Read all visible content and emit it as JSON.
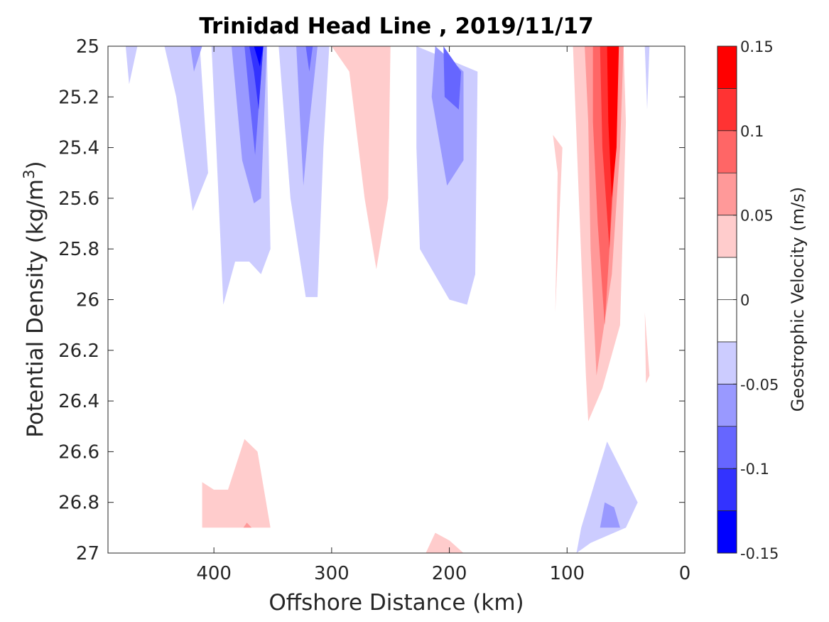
{
  "chart_data": {
    "type": "contour",
    "title": "Trinidad Head Line , 2019/11/17",
    "xlabel": "Offshore Distance (km)",
    "ylabel_main": "Potential Density (kg/m",
    "ylabel_sup": "3",
    "ylabel_tail": ")",
    "xlim": [
      490,
      0
    ],
    "ylim": [
      25,
      27
    ],
    "y_reversed": true,
    "x_reversed": true,
    "grid": false,
    "xticks": [
      400,
      300,
      200,
      100,
      0
    ],
    "xtick_labels": [
      "400",
      "300",
      "200",
      "100",
      "0"
    ],
    "yticks": [
      25,
      25.2,
      25.4,
      25.6,
      25.8,
      26,
      26.2,
      26.4,
      26.6,
      26.8,
      27
    ],
    "ytick_labels": [
      "25",
      "25.2",
      "25.4",
      "25.6",
      "25.8",
      "26",
      "26.2",
      "26.4",
      "26.6",
      "26.8",
      "27"
    ],
    "colorbar": {
      "label": "Geostrophic Velocity (m/s)",
      "range": [
        -0.15,
        0.15
      ],
      "ticks": [
        0.15,
        0.1,
        0.05,
        0,
        -0.05,
        -0.1,
        -0.15
      ],
      "tick_labels": [
        "0.15",
        "0.1",
        "0.05",
        "0",
        "-0.05",
        "-0.1",
        "-0.15"
      ],
      "bands_top_to_bottom": [
        "#ff0000",
        "#ff3333",
        "#ff6666",
        "#ff9999",
        "#ffcccc",
        "#ffffff",
        "#ffffff",
        "#ccccff",
        "#9999ff",
        "#6666ff",
        "#3333ff",
        "#0000ff"
      ]
    },
    "contour_regions": [
      {
        "level": -0.05,
        "color": "#ccccff",
        "points": [
          [
            475,
            25
          ],
          [
            465,
            25
          ],
          [
            472,
            25.15
          ]
        ]
      },
      {
        "level": -0.05,
        "color": "#ccccff",
        "points": [
          [
            442,
            25
          ],
          [
            412,
            25
          ],
          [
            405,
            25.5
          ],
          [
            418,
            25.65
          ],
          [
            432,
            25.2
          ]
        ]
      },
      {
        "level": -0.05,
        "color": "#ccccff",
        "points": [
          [
            402,
            25
          ],
          [
            355,
            25
          ],
          [
            352,
            25.8
          ],
          [
            360,
            25.9
          ],
          [
            370,
            25.85
          ],
          [
            382,
            25.85
          ],
          [
            392,
            26.02
          ],
          [
            398,
            25.4
          ]
        ]
      },
      {
        "level": -0.05,
        "color": "#ccccff",
        "points": [
          [
            345,
            25
          ],
          [
            302,
            25
          ],
          [
            307,
            25.4
          ],
          [
            312,
            25.99
          ],
          [
            322,
            25.99
          ],
          [
            335,
            25.6
          ]
        ]
      },
      {
        "level": -0.05,
        "color": "#ccccff",
        "points": [
          [
            228,
            25
          ],
          [
            176,
            25.1
          ],
          [
            178,
            25.9
          ],
          [
            185,
            26.02
          ],
          [
            200,
            26
          ],
          [
            225,
            25.8
          ],
          [
            228,
            25.4
          ]
        ]
      },
      {
        "level": -0.05,
        "color": "#ccccff",
        "points": [
          [
            34,
            25
          ],
          [
            30,
            25
          ],
          [
            32,
            25.25
          ]
        ]
      },
      {
        "level": -0.05,
        "color": "#ccccff",
        "points": [
          [
            66,
            26.56
          ],
          [
            40,
            26.8
          ],
          [
            50,
            26.9
          ],
          [
            80,
            26.96
          ],
          [
            92,
            27
          ],
          [
            88,
            26.9
          ],
          [
            75,
            26.7
          ]
        ]
      },
      {
        "level": -0.075,
        "color": "#9999ff",
        "points": [
          [
            420,
            25
          ],
          [
            410,
            25
          ],
          [
            417,
            25.1
          ]
        ]
      },
      {
        "level": -0.075,
        "color": "#9999ff",
        "points": [
          [
            385,
            25
          ],
          [
            355,
            25
          ],
          [
            360,
            25.6
          ],
          [
            366,
            25.62
          ],
          [
            376,
            25.45
          ]
        ]
      },
      {
        "level": -0.075,
        "color": "#9999ff",
        "points": [
          [
            330,
            25
          ],
          [
            312,
            25
          ],
          [
            320,
            25.35
          ],
          [
            324,
            25.55
          ]
        ]
      },
      {
        "level": -0.075,
        "color": "#9999ff",
        "points": [
          [
            212,
            25
          ],
          [
            188,
            25.1
          ],
          [
            188,
            25.45
          ],
          [
            202,
            25.55
          ],
          [
            215,
            25.2
          ]
        ]
      },
      {
        "level": -0.075,
        "color": "#9999ff",
        "points": [
          [
            60,
            26.82
          ],
          [
            55,
            26.9
          ],
          [
            72,
            26.9
          ],
          [
            68,
            26.8
          ]
        ]
      },
      {
        "level": -0.1,
        "color": "#6666ff",
        "points": [
          [
            374,
            25
          ],
          [
            358,
            25
          ],
          [
            365,
            25.43
          ],
          [
            370,
            25.2
          ]
        ]
      },
      {
        "level": -0.1,
        "color": "#6666ff",
        "points": [
          [
            322,
            25
          ],
          [
            316,
            25
          ],
          [
            319,
            25.1
          ]
        ]
      },
      {
        "level": -0.1,
        "color": "#6666ff",
        "points": [
          [
            205,
            25
          ],
          [
            190,
            25.1
          ],
          [
            192,
            25.25
          ],
          [
            204,
            25.2
          ]
        ]
      },
      {
        "level": -0.125,
        "color": "#3333ff",
        "points": [
          [
            370,
            25
          ],
          [
            358,
            25
          ],
          [
            362,
            25.25
          ],
          [
            366,
            25.1
          ]
        ]
      },
      {
        "level": -0.15,
        "color": "#0000ff",
        "points": [
          [
            366,
            25
          ],
          [
            358,
            25
          ],
          [
            361,
            25.08
          ]
        ]
      },
      {
        "level": 0.025,
        "color": "#ffcccc",
        "points": [
          [
            300,
            25
          ],
          [
            250,
            25
          ],
          [
            252,
            25.6
          ],
          [
            262,
            25.88
          ],
          [
            272,
            25.6
          ],
          [
            285,
            25.1
          ]
        ]
      },
      {
        "level": 0.025,
        "color": "#ffcccc",
        "points": [
          [
            112,
            25.35
          ],
          [
            108,
            25.5
          ],
          [
            110,
            26.05
          ],
          [
            104,
            25.4
          ]
        ]
      },
      {
        "level": 0.025,
        "color": "#ffcccc",
        "points": [
          [
            95,
            25
          ],
          [
            52,
            25
          ],
          [
            50,
            25.3
          ],
          [
            55,
            26.1
          ],
          [
            70,
            26.35
          ],
          [
            82,
            26.48
          ],
          [
            84,
            26.3
          ],
          [
            90,
            25.6
          ]
        ]
      },
      {
        "level": 0.025,
        "color": "#ffcccc",
        "points": [
          [
            34,
            26.05
          ],
          [
            30,
            26.3
          ],
          [
            33,
            26.33
          ]
        ]
      },
      {
        "level": 0.025,
        "color": "#ffcccc",
        "points": [
          [
            410,
            26.9
          ],
          [
            352,
            26.9
          ],
          [
            363,
            26.6
          ],
          [
            374,
            26.55
          ],
          [
            388,
            26.75
          ],
          [
            400,
            26.75
          ],
          [
            410,
            26.72
          ]
        ]
      },
      {
        "level": 0.025,
        "color": "#ffcccc",
        "points": [
          [
            220,
            27
          ],
          [
            188,
            27
          ],
          [
            200,
            26.95
          ],
          [
            212,
            26.92
          ]
        ]
      },
      {
        "level": 0.05,
        "color": "#ff9999",
        "points": [
          [
            85,
            25
          ],
          [
            52,
            25
          ],
          [
            55,
            25.4
          ],
          [
            62,
            25.9
          ],
          [
            75,
            26.3
          ],
          [
            80,
            25.8
          ],
          [
            82,
            25.3
          ]
        ]
      },
      {
        "level": 0.075,
        "color": "#ff6666",
        "points": [
          [
            78,
            25
          ],
          [
            58,
            25
          ],
          [
            60,
            25.5
          ],
          [
            68,
            26.1
          ],
          [
            74,
            25.7
          ],
          [
            78,
            25.3
          ]
        ]
      },
      {
        "level": 0.1,
        "color": "#ff3333",
        "points": [
          [
            72,
            25
          ],
          [
            58,
            25
          ],
          [
            60,
            25.4
          ],
          [
            64,
            25.8
          ],
          [
            70,
            25.4
          ]
        ]
      },
      {
        "level": 0.125,
        "color": "#ff0000",
        "points": [
          [
            66,
            25
          ],
          [
            56,
            25
          ],
          [
            58,
            25.4
          ],
          [
            62,
            25.6
          ],
          [
            65,
            25.3
          ]
        ]
      },
      {
        "level": 0.05,
        "color": "#ff9999",
        "points": [
          [
            375,
            26.9
          ],
          [
            368,
            26.9
          ],
          [
            372,
            26.88
          ]
        ]
      }
    ]
  }
}
